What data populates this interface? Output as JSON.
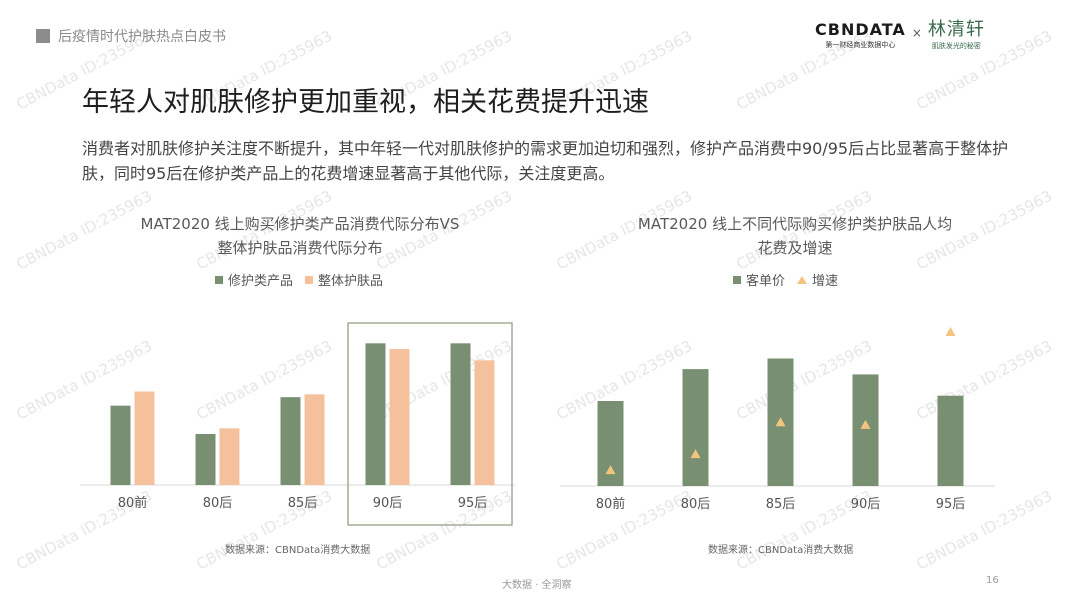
{
  "header": {
    "section_label": "后疫情时代护肤热点白皮书"
  },
  "brand": {
    "cbn_name": "CBNDATA",
    "cbn_tagline": "第一财经商业数据中心",
    "separator": "×",
    "partner_name": "林清轩",
    "partner_tagline": "肌肤发光的秘密"
  },
  "title": "年轻人对肌肤修护更加重视，相关花费提升迅速",
  "description": "消费者对肌肤修护关注度不断提升，其中年轻一代对肌肤修护的需求更加迫切和强烈，修护产品消费中90/95后占比显著高于整体护肤，同时95后在修护类产品上的花费增速显著高于其他代际，关注度更高。",
  "colors": {
    "green": "#788f71",
    "peach": "#f5c09c",
    "triangle": "#f3c47e",
    "highlight_border": "#8a9a7c"
  },
  "watermark_text": "CBNData ID:235963",
  "chart_data": [
    {
      "type": "bar",
      "title_lines": [
        "MAT2020 线上购买修护类产品消费代际分布VS",
        "整体护肤品消费代际分布"
      ],
      "categories": [
        "80前",
        "80后",
        "85后",
        "90后",
        "95后"
      ],
      "series": [
        {
          "name": "修护类产品",
          "color": "#788f71",
          "values": [
            14,
            9,
            15.5,
            25,
            25
          ]
        },
        {
          "name": "整体护肤品",
          "color": "#f5c09c",
          "values": [
            16.5,
            10,
            16,
            24,
            22
          ]
        }
      ],
      "ylim": [
        0,
        30
      ],
      "highlight_categories": [
        "90后",
        "95后"
      ],
      "legend_position": "top",
      "grid": false,
      "source": "数据来源：CBNData消费大数据"
    },
    {
      "type": "bar+scatter",
      "title_lines": [
        "MAT2020 线上不同代际购买修护类护肤品人均",
        "花费及增速"
      ],
      "categories": [
        "80前",
        "80后",
        "85后",
        "90后",
        "95后"
      ],
      "series": [
        {
          "name": "客单价",
          "kind": "bar",
          "color": "#788f71",
          "values": [
            16,
            22,
            24,
            21,
            17
          ]
        },
        {
          "name": "增速",
          "kind": "marker",
          "color": "#f3c47e",
          "values": [
            3,
            6,
            12,
            11.5,
            29
          ]
        }
      ],
      "ylim": [
        0,
        32
      ],
      "legend_position": "top",
      "grid": false,
      "source": "数据来源：CBNData消费大数据"
    }
  ],
  "footer": {
    "text": "大数据 · 全洞察",
    "page_number": "16"
  }
}
